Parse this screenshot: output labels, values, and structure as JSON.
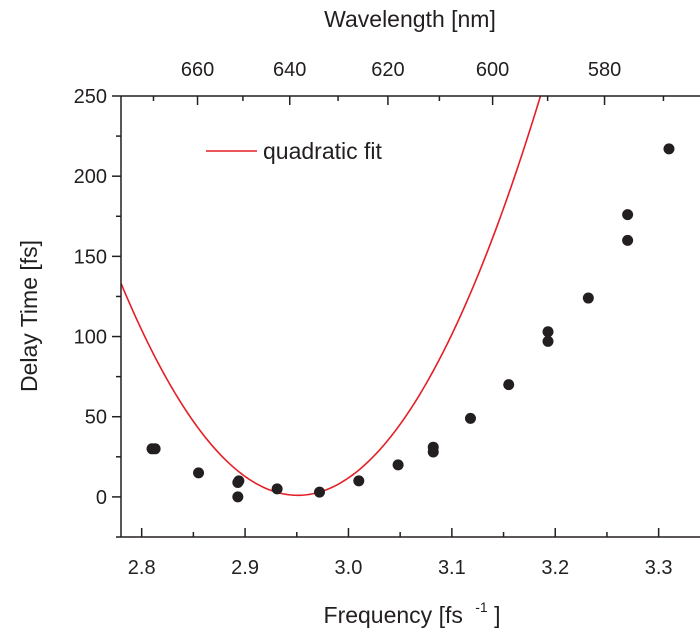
{
  "chart_data": {
    "type": "scatter",
    "title": "",
    "xlabel": "Frequency [fs",
    "xlabel_sup": "-1",
    "xlabel_suffix": "]",
    "x2label": "Wavelength [nm]",
    "ylabel": "Delay Time [fs]",
    "xlim": [
      2.78,
      3.34
    ],
    "ylim": [
      -25,
      250
    ],
    "x_ticks": [
      2.8,
      2.9,
      3.0,
      3.1,
      3.2,
      3.3
    ],
    "x_tick_labels": [
      "2.8",
      "2.9",
      "3.0",
      "3.1",
      "3.2",
      "3.3"
    ],
    "y_ticks": [
      0,
      50,
      100,
      150,
      200,
      250
    ],
    "y_tick_labels": [
      "0",
      "50",
      "100",
      "150",
      "200",
      "250"
    ],
    "x2_ticks_nm": [
      660,
      640,
      620,
      600,
      580
    ],
    "x2_tick_labels": [
      "660",
      "640",
      "620",
      "600",
      "580"
    ],
    "grid": false,
    "legend": {
      "position": "top-left",
      "entries": [
        {
          "name": "quadratic fit",
          "color": "#e41f26"
        }
      ]
    },
    "series": [
      {
        "type": "scatter",
        "color": "#231f20",
        "points": [
          [
            2.81,
            30
          ],
          [
            2.813,
            30
          ],
          [
            2.855,
            15
          ],
          [
            2.893,
            9
          ],
          [
            2.894,
            10
          ],
          [
            2.893,
            0
          ],
          [
            2.931,
            5
          ],
          [
            2.972,
            3
          ],
          [
            3.01,
            10
          ],
          [
            3.048,
            20
          ],
          [
            3.082,
            31
          ],
          [
            3.082,
            28
          ],
          [
            3.118,
            49
          ],
          [
            3.155,
            70
          ],
          [
            3.193,
            103
          ],
          [
            3.193,
            97
          ],
          [
            3.232,
            124
          ],
          [
            3.27,
            176
          ],
          [
            3.27,
            160
          ],
          [
            3.31,
            217
          ]
        ]
      },
      {
        "name": "quadratic fit",
        "type": "line",
        "color": "#e41f26",
        "fit": {
          "vertex_x": 2.951,
          "vertex_y": 1,
          "a": 4520
        }
      }
    ]
  }
}
